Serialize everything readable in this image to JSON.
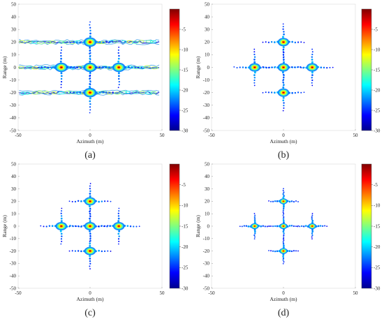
{
  "chart_data": [
    {
      "type": "heatmap",
      "panel_label": "(a)",
      "xlabel": "Azimuth (m)",
      "ylabel": "Range (m)",
      "xlim": [
        -50,
        50
      ],
      "ylim": [
        -50,
        50
      ],
      "x_ticks": [
        -50,
        0,
        50
      ],
      "y_ticks": [
        50,
        40,
        30,
        20,
        10,
        0,
        -10,
        -20,
        -30,
        -40,
        -50
      ],
      "colorbar": {
        "range": [
          -30,
          0
        ],
        "ticks": [
          -5,
          -10,
          -15,
          -20,
          -25,
          -30
        ]
      },
      "targets": [
        {
          "x": 0,
          "y": 20
        },
        {
          "x": -20,
          "y": 0
        },
        {
          "x": 0,
          "y": 0
        },
        {
          "x": 20,
          "y": 0
        },
        {
          "x": 0,
          "y": -20
        }
      ],
      "sidelobe_bands_y": [
        20,
        0,
        -20
      ]
    },
    {
      "type": "heatmap",
      "panel_label": "(b)",
      "xlabel": "Azimuth (m)",
      "ylabel": "Range (m)",
      "xlim": [
        -50,
        50
      ],
      "ylim": [
        -50,
        50
      ],
      "x_ticks": [
        -50,
        0,
        50
      ],
      "y_ticks": [
        50,
        40,
        30,
        20,
        10,
        0,
        -10,
        -20,
        -30,
        -40,
        -50
      ],
      "colorbar": {
        "range": [
          -30,
          0
        ],
        "ticks": [
          -5,
          -10,
          -15,
          -20,
          -25,
          -30
        ]
      },
      "targets": [
        {
          "x": 0,
          "y": 20
        },
        {
          "x": -20,
          "y": 0
        },
        {
          "x": 0,
          "y": 0
        },
        {
          "x": 20,
          "y": 0
        },
        {
          "x": 0,
          "y": -20
        }
      ]
    },
    {
      "type": "heatmap",
      "panel_label": "(c)",
      "xlabel": "Azimuth (m)",
      "ylabel": "Range (m)",
      "xlim": [
        -50,
        50
      ],
      "ylim": [
        -50,
        50
      ],
      "x_ticks": [
        -50,
        0,
        50
      ],
      "y_ticks": [
        50,
        40,
        30,
        20,
        10,
        0,
        -10,
        -20,
        -30,
        -40,
        -50
      ],
      "colorbar": {
        "range": [
          -30,
          0
        ],
        "ticks": [
          -5,
          -10,
          -15,
          -20,
          -25,
          -30
        ]
      },
      "targets": [
        {
          "x": 0,
          "y": 20
        },
        {
          "x": -20,
          "y": 0
        },
        {
          "x": 0,
          "y": 0
        },
        {
          "x": 20,
          "y": 0
        },
        {
          "x": 0,
          "y": -20
        }
      ]
    },
    {
      "type": "heatmap",
      "panel_label": "(d)",
      "xlabel": "Azimuth (m)",
      "ylabel": "Range (m)",
      "xlim": [
        -50,
        50
      ],
      "ylim": [
        -50,
        50
      ],
      "x_ticks": [
        -50,
        0,
        50
      ],
      "y_ticks": [
        50,
        40,
        30,
        20,
        10,
        0,
        -10,
        -20,
        -30,
        -40,
        -50
      ],
      "colorbar": {
        "range": [
          -30,
          0
        ],
        "ticks": [
          -5,
          -10,
          -15,
          -20,
          -25,
          -30
        ]
      },
      "targets": [
        {
          "x": 0,
          "y": 20
        },
        {
          "x": -20,
          "y": 0
        },
        {
          "x": 0,
          "y": 0
        },
        {
          "x": 20,
          "y": 0
        },
        {
          "x": 0,
          "y": -20
        }
      ]
    }
  ]
}
